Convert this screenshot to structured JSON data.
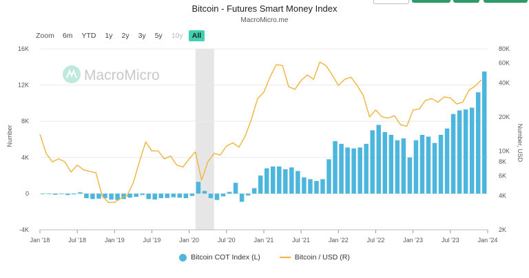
{
  "header": {
    "title": "Bitcoin - Futures Smart Money Index",
    "subtitle": "MacroMicro.me"
  },
  "zoom": {
    "label": "Zoom",
    "buttons": [
      {
        "label": "6m",
        "state": "normal"
      },
      {
        "label": "YTD",
        "state": "normal"
      },
      {
        "label": "1y",
        "state": "normal"
      },
      {
        "label": "2y",
        "state": "normal"
      },
      {
        "label": "3y",
        "state": "normal"
      },
      {
        "label": "5y",
        "state": "normal"
      },
      {
        "label": "10y",
        "state": "disabled"
      },
      {
        "label": "All",
        "state": "active"
      }
    ]
  },
  "watermark": {
    "text": "MacroMicro",
    "icon": "macromicro-logo-icon"
  },
  "colors": {
    "cot": "#4cb6dc",
    "price": "#f0b43c",
    "band": "#e6e6e6",
    "grid": "#e8e8e8"
  },
  "chart_data": {
    "type": "bar+line",
    "title": "Bitcoin - Futures Smart Money Index",
    "x_ticks": [
      "Jan '18",
      "Jul '18",
      "Jan '19",
      "Jul '19",
      "Jan '20",
      "Jul '20",
      "Jan '21",
      "Jul '21",
      "Jan '22",
      "Jul '22",
      "Jan '23",
      "Jul '23",
      "Jan '24"
    ],
    "x_range": [
      "2018-01",
      "2024-01"
    ],
    "shaded_band": {
      "from": "2020-02",
      "to": "2020-05"
    },
    "y_left": {
      "label": "Number",
      "ticks": [
        "16K",
        "12K",
        "8K",
        "4K",
        "0",
        "-4K"
      ],
      "range": [
        -4000,
        16000
      ]
    },
    "y_right": {
      "label": "Number, USD",
      "scale": "log",
      "ticks": [
        "80K",
        "60K",
        "40K",
        "20K",
        "10K",
        "8K",
        "6K",
        "4K",
        "2K"
      ],
      "range": [
        2000,
        80000
      ]
    },
    "legend": {
      "position": "bottom-center"
    },
    "series": [
      {
        "name": "Bitcoin COT Index (L)",
        "type": "bar",
        "axis": "left",
        "points": [
          [
            "2018-01",
            0
          ],
          [
            "2018-02",
            -50
          ],
          [
            "2018-03",
            -120
          ],
          [
            "2018-04",
            -60
          ],
          [
            "2018-05",
            -150
          ],
          [
            "2018-06",
            -80
          ],
          [
            "2018-07",
            150
          ],
          [
            "2018-08",
            -500
          ],
          [
            "2018-09",
            -600
          ],
          [
            "2018-10",
            -550
          ],
          [
            "2018-11",
            -500
          ],
          [
            "2018-12",
            -650
          ],
          [
            "2019-01",
            -700
          ],
          [
            "2019-02",
            -600
          ],
          [
            "2019-03",
            -450
          ],
          [
            "2019-04",
            -350
          ],
          [
            "2019-05",
            -150
          ],
          [
            "2019-06",
            -600
          ],
          [
            "2019-07",
            -650
          ],
          [
            "2019-08",
            -500
          ],
          [
            "2019-09",
            -480
          ],
          [
            "2019-10",
            -400
          ],
          [
            "2019-11",
            -450
          ],
          [
            "2019-12",
            -500
          ],
          [
            "2020-01",
            -250
          ],
          [
            "2020-02",
            1300
          ],
          [
            "2020-03",
            300
          ],
          [
            "2020-04",
            -500
          ],
          [
            "2020-05",
            -700
          ],
          [
            "2020-06",
            -300
          ],
          [
            "2020-07",
            200
          ],
          [
            "2020-08",
            1200
          ],
          [
            "2020-09",
            -900
          ],
          [
            "2020-10",
            -200
          ],
          [
            "2020-11",
            600
          ],
          [
            "2020-12",
            2000
          ],
          [
            "2021-01",
            2800
          ],
          [
            "2021-02",
            3000
          ],
          [
            "2021-03",
            3000
          ],
          [
            "2021-04",
            2700
          ],
          [
            "2021-05",
            2900
          ],
          [
            "2021-06",
            2500
          ],
          [
            "2021-07",
            1800
          ],
          [
            "2021-08",
            1600
          ],
          [
            "2021-09",
            1400
          ],
          [
            "2021-10",
            1600
          ],
          [
            "2021-11",
            3800
          ],
          [
            "2021-12",
            5800
          ],
          [
            "2022-01",
            5500
          ],
          [
            "2022-02",
            5100
          ],
          [
            "2022-03",
            5000
          ],
          [
            "2022-04",
            5100
          ],
          [
            "2022-05",
            5500
          ],
          [
            "2022-06",
            7000
          ],
          [
            "2022-07",
            7600
          ],
          [
            "2022-08",
            6800
          ],
          [
            "2022-09",
            6500
          ],
          [
            "2022-10",
            5900
          ],
          [
            "2022-11",
            6100
          ],
          [
            "2022-12",
            4000
          ],
          [
            "2023-01",
            5900
          ],
          [
            "2023-02",
            6500
          ],
          [
            "2023-03",
            6300
          ],
          [
            "2023-04",
            5600
          ],
          [
            "2023-05",
            6500
          ],
          [
            "2023-06",
            7200
          ],
          [
            "2023-07",
            8800
          ],
          [
            "2023-08",
            9200
          ],
          [
            "2023-09",
            9300
          ],
          [
            "2023-10",
            9500
          ],
          [
            "2023-11",
            11200
          ],
          [
            "2023-12",
            13500
          ]
        ]
      },
      {
        "name": "Bitcoin / USD (R)",
        "type": "line",
        "axis": "right",
        "points": [
          [
            "2018-01",
            14000
          ],
          [
            "2018-02",
            9500
          ],
          [
            "2018-03",
            8000
          ],
          [
            "2018-04",
            8500
          ],
          [
            "2018-05",
            8000
          ],
          [
            "2018-06",
            6500
          ],
          [
            "2018-07",
            7500
          ],
          [
            "2018-08",
            6800
          ],
          [
            "2018-09",
            6600
          ],
          [
            "2018-10",
            6400
          ],
          [
            "2018-11",
            4000
          ],
          [
            "2018-12",
            3500
          ],
          [
            "2019-01",
            3500
          ],
          [
            "2019-02",
            3800
          ],
          [
            "2019-03",
            4000
          ],
          [
            "2019-04",
            5200
          ],
          [
            "2019-05",
            8000
          ],
          [
            "2019-06",
            12000
          ],
          [
            "2019-07",
            10000
          ],
          [
            "2019-08",
            10000
          ],
          [
            "2019-09",
            8500
          ],
          [
            "2019-10",
            9000
          ],
          [
            "2019-11",
            7500
          ],
          [
            "2019-12",
            7200
          ],
          [
            "2020-01",
            8500
          ],
          [
            "2020-02",
            9800
          ],
          [
            "2020-03",
            5500
          ],
          [
            "2020-04",
            8000
          ],
          [
            "2020-05",
            9500
          ],
          [
            "2020-06",
            9200
          ],
          [
            "2020-07",
            11000
          ],
          [
            "2020-08",
            11800
          ],
          [
            "2020-09",
            10800
          ],
          [
            "2020-10",
            13500
          ],
          [
            "2020-11",
            19000
          ],
          [
            "2020-12",
            29000
          ],
          [
            "2021-01",
            33000
          ],
          [
            "2021-02",
            45000
          ],
          [
            "2021-03",
            58000
          ],
          [
            "2021-04",
            57000
          ],
          [
            "2021-05",
            37000
          ],
          [
            "2021-06",
            35000
          ],
          [
            "2021-07",
            42000
          ],
          [
            "2021-08",
            47000
          ],
          [
            "2021-09",
            43000
          ],
          [
            "2021-10",
            61000
          ],
          [
            "2021-11",
            57000
          ],
          [
            "2021-12",
            47000
          ],
          [
            "2022-01",
            38000
          ],
          [
            "2022-02",
            43000
          ],
          [
            "2022-03",
            45000
          ],
          [
            "2022-04",
            38000
          ],
          [
            "2022-05",
            31000
          ],
          [
            "2022-06",
            20000
          ],
          [
            "2022-07",
            23000
          ],
          [
            "2022-08",
            20000
          ],
          [
            "2022-09",
            19500
          ],
          [
            "2022-10",
            20500
          ],
          [
            "2022-11",
            17000
          ],
          [
            "2022-12",
            16500
          ],
          [
            "2023-01",
            23000
          ],
          [
            "2023-02",
            23500
          ],
          [
            "2023-03",
            28000
          ],
          [
            "2023-04",
            29000
          ],
          [
            "2023-05",
            27000
          ],
          [
            "2023-06",
            30000
          ],
          [
            "2023-07",
            29500
          ],
          [
            "2023-08",
            26000
          ],
          [
            "2023-09",
            27000
          ],
          [
            "2023-10",
            34500
          ],
          [
            "2023-11",
            37500
          ],
          [
            "2023-12",
            42500
          ]
        ]
      }
    ]
  }
}
